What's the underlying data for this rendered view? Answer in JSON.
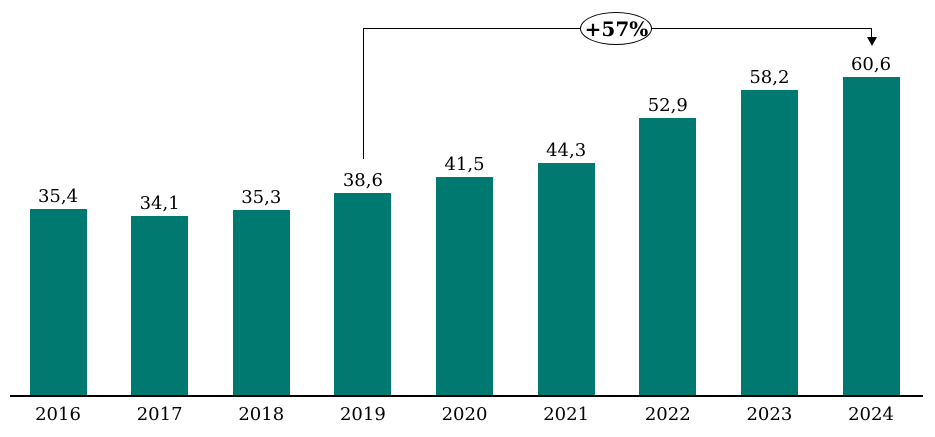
{
  "chart_data": {
    "type": "bar",
    "categories": [
      "2016",
      "2017",
      "2018",
      "2019",
      "2020",
      "2021",
      "2022",
      "2023",
      "2024"
    ],
    "values": [
      35.4,
      34.1,
      35.3,
      38.6,
      41.5,
      44.3,
      52.9,
      58.2,
      60.6
    ],
    "value_labels": [
      "35,4",
      "34,1",
      "35,3",
      "38,6",
      "41,5",
      "44,3",
      "52,9",
      "58,2",
      "60,6"
    ],
    "title": "",
    "xlabel": "",
    "ylabel": "",
    "ylim": [
      0,
      65
    ],
    "grid": false,
    "legend": false,
    "bar_color": "#007A71",
    "axis_color": "#000000",
    "label_color": "#000000",
    "annotation": {
      "label": "+57%",
      "from_category": "2019",
      "to_category": "2024"
    }
  }
}
